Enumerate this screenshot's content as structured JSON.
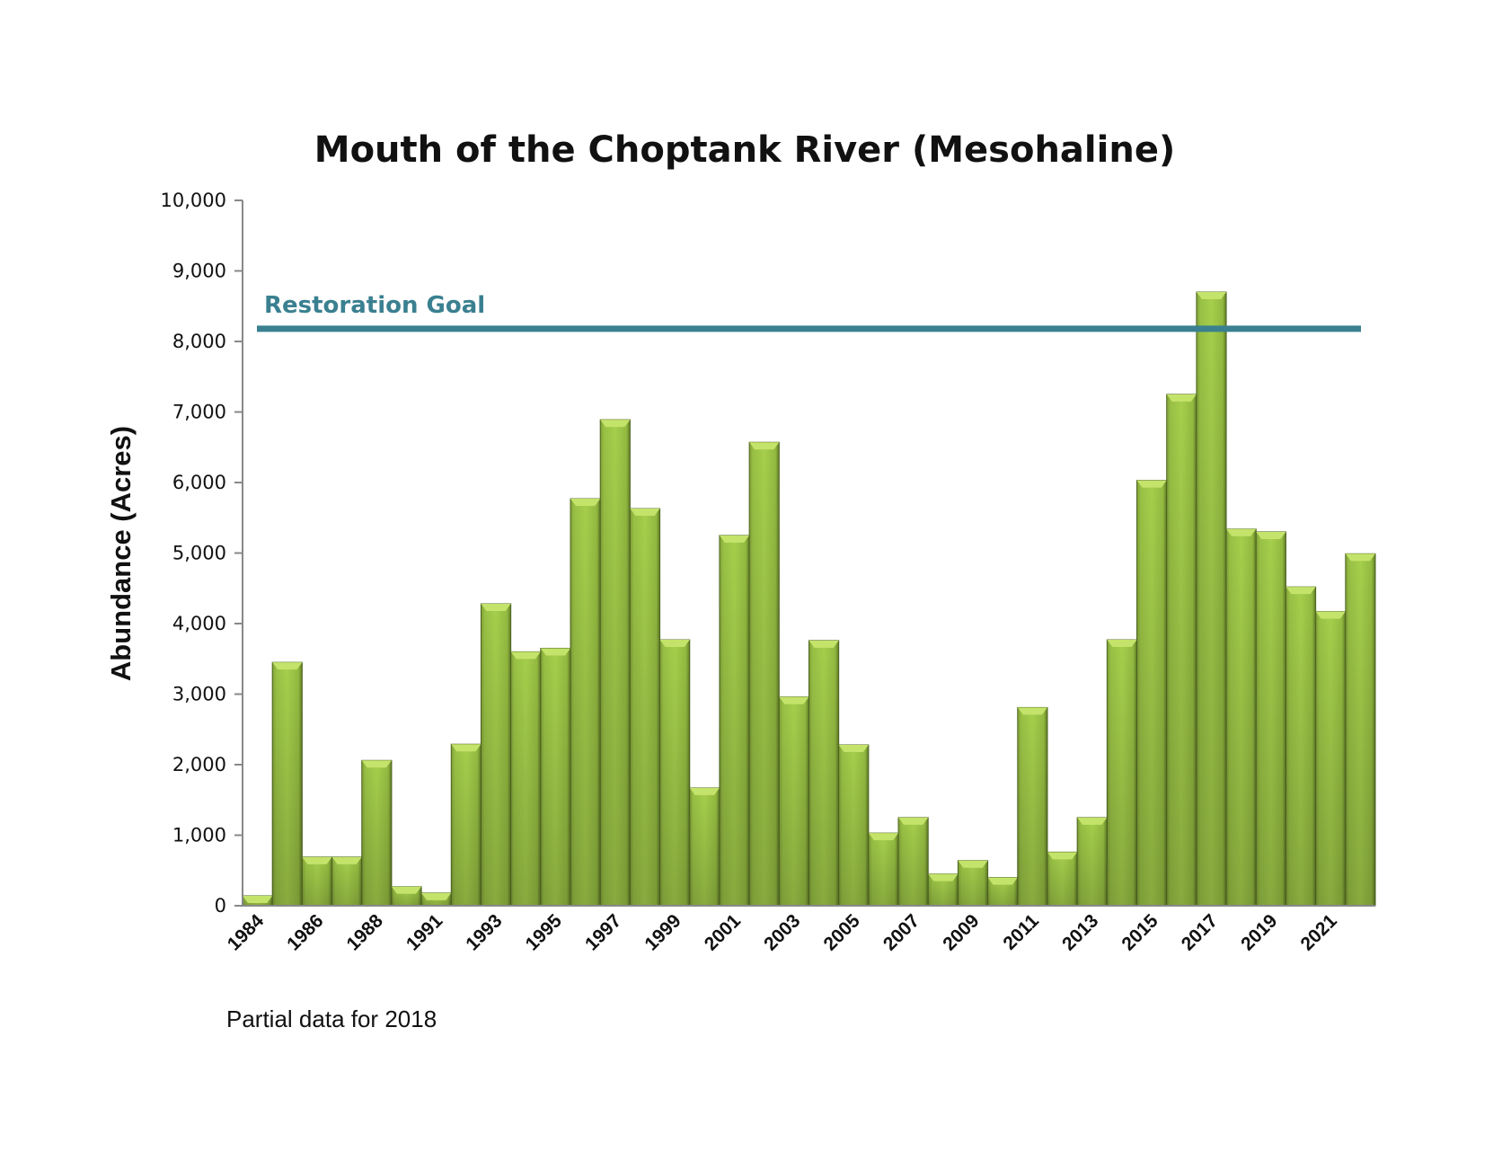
{
  "chart_data": {
    "type": "bar",
    "title": "Mouth of the Choptank River (Mesohaline)",
    "xlabel": "",
    "ylabel": "Abundance (Acres)",
    "ylim": [
      0,
      10000
    ],
    "yticks": [
      0,
      1000,
      2000,
      3000,
      4000,
      5000,
      6000,
      7000,
      8000,
      9000,
      10000
    ],
    "ytick_labels": [
      "0",
      "1,000",
      "2,000",
      "3,000",
      "4,000",
      "5,000",
      "6,000",
      "7,000",
      "8,000",
      "9,000",
      "10,000"
    ],
    "categories": [
      "1984",
      "1985",
      "1986",
      "1987",
      "1988",
      "1990",
      "1991",
      "1992",
      "1993",
      "1994",
      "1995",
      "1996",
      "1997",
      "1998",
      "1999",
      "2000",
      "2001",
      "2002",
      "2003",
      "2004",
      "2005",
      "2006",
      "2007",
      "2008",
      "2009",
      "2010",
      "2011",
      "2012",
      "2013",
      "2014",
      "2015",
      "2016",
      "2017",
      "2018",
      "2019",
      "2020",
      "2021",
      "2022"
    ],
    "xtick_labels": [
      "1984",
      "1986",
      "1988",
      "1991",
      "1993",
      "1995",
      "1997",
      "1999",
      "2001",
      "2003",
      "2005",
      "2007",
      "2009",
      "2011",
      "2013",
      "2015",
      "2017",
      "2019",
      "2021"
    ],
    "values": [
      140,
      3450,
      690,
      690,
      2060,
      270,
      180,
      2290,
      4280,
      3600,
      3650,
      5770,
      6890,
      5630,
      3770,
      1670,
      5250,
      6570,
      2960,
      3760,
      2280,
      1030,
      1250,
      450,
      640,
      400,
      2810,
      760,
      1250,
      3770,
      6030,
      7250,
      8700,
      5340,
      5300,
      4520,
      4170,
      4990
    ],
    "reference_line": {
      "label": "Restoration Goal",
      "value": 8180,
      "color": "#3a8090"
    },
    "bar_color": "#98c040",
    "grid": false,
    "annotation": "Partial data for 2018"
  }
}
